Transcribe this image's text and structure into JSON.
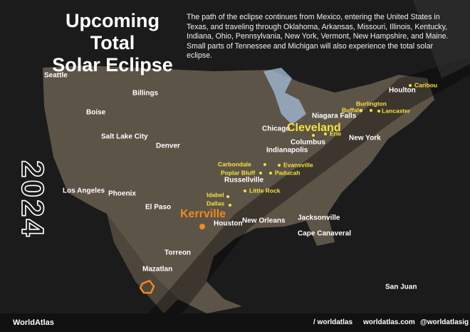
{
  "header": {
    "title_lines": [
      "Upcoming Total",
      "Solar Eclipse"
    ],
    "description": "The path of the eclipse continues from Mexico, entering the United States in Texas, and traveling through Oklahoma, Arkansas, Missouri, Illinois, Kentucky, Indiana, Ohio, Pennsylvania, New York, Vermont, New Hampshire, and Maine. Small parts of Tennessee and Michigan will also experience the total solar eclipse."
  },
  "year": "2024",
  "cities": [
    "Seattle",
    "Billings",
    "Boise",
    "Salt Lake City",
    "Denver",
    "Los Angeles",
    "Phoenix",
    "El Paso",
    "Houston",
    "New Orleans",
    "Jacksonville",
    "Cape Canaveral",
    "Torreon",
    "Mazatlan",
    "San Juan",
    "Chicago",
    "Indianapolis",
    "Columbus",
    "Niagara Falls",
    "New York",
    "Houlton",
    "Russellville"
  ],
  "path_cities": [
    "Caribou",
    "Burlington",
    "Buffalo",
    "Lancaster",
    "Erie",
    "Carbondale",
    "Evansville",
    "Poplar Bluff",
    "Paducah",
    "Little Rock",
    "Idabel",
    "Dallas"
  ],
  "highlights": [
    "Cleveland",
    "Kerrville"
  ],
  "footer": {
    "brand": "WorldAtlas",
    "social": "/ worldatlas",
    "site": "worldatlas.com",
    "instagram": "@worldatlasig"
  }
}
